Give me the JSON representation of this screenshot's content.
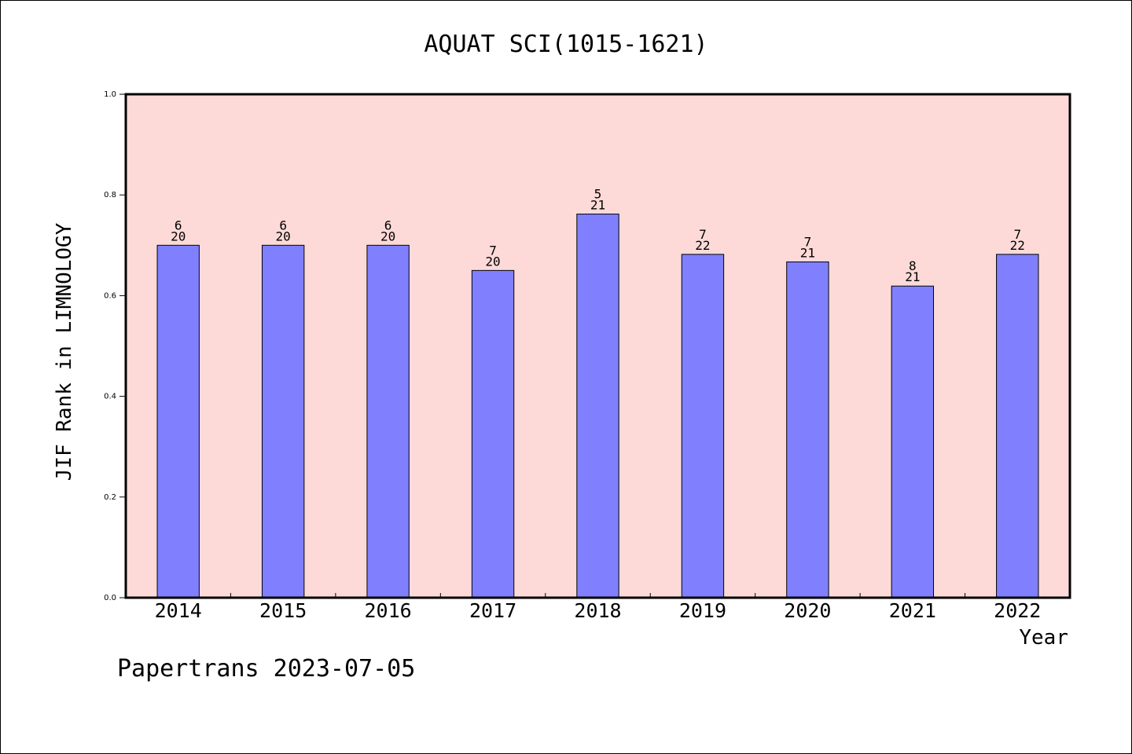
{
  "chart_data": {
    "type": "bar",
    "title": "AQUAT SCI(1015-1621)",
    "xlabel": "Year",
    "ylabel": "JIF Rank in LIMNOLOGY",
    "ylim": [
      0,
      1.0
    ],
    "yticks": [
      "0.0",
      "0.2",
      "0.4",
      "0.6",
      "0.8",
      "1.0"
    ],
    "categories": [
      "2014",
      "2015",
      "2016",
      "2017",
      "2018",
      "2019",
      "2020",
      "2021",
      "2022"
    ],
    "values": [
      0.7,
      0.7,
      0.7,
      0.65,
      0.762,
      0.682,
      0.667,
      0.619,
      0.682
    ],
    "ranks": [
      "6",
      "6",
      "6",
      "7",
      "5",
      "7",
      "7",
      "8",
      "7"
    ],
    "totals": [
      "20",
      "20",
      "20",
      "20",
      "21",
      "22",
      "21",
      "21",
      "22"
    ],
    "grid": false,
    "colors": {
      "plot_bg": "#fddad8",
      "bar": "#8080ff",
      "axis": "#000000"
    }
  },
  "footer": {
    "text": "Papertrans 2023-07-05"
  }
}
